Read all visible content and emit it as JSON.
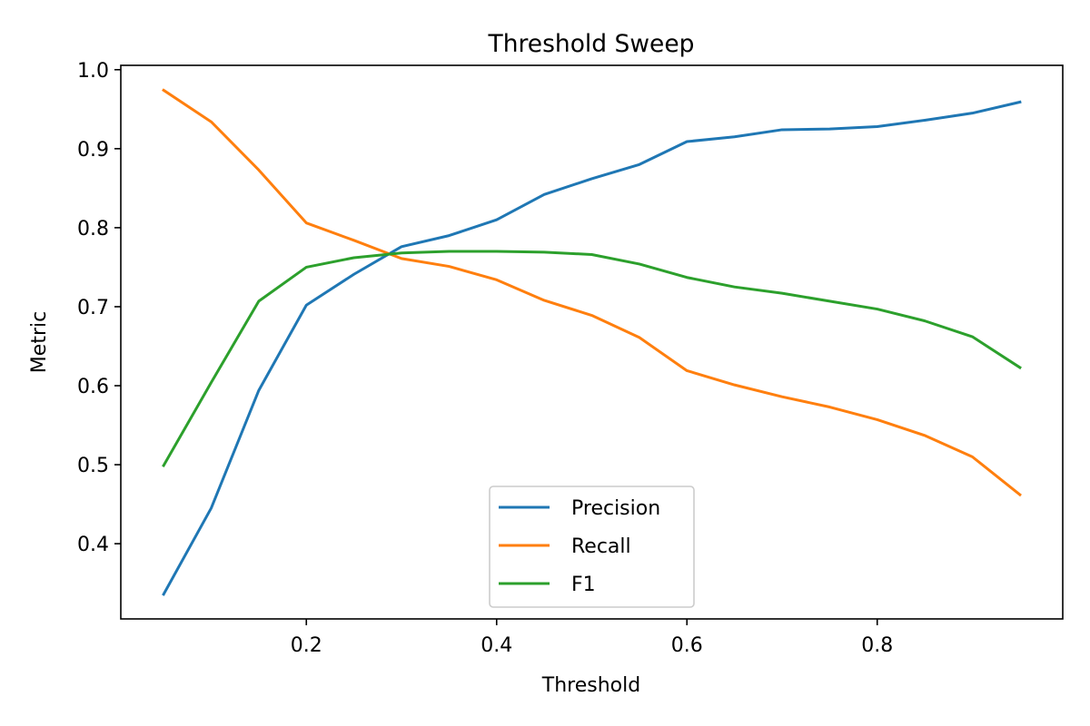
{
  "chart_data": {
    "type": "line",
    "title": "Threshold Sweep",
    "xlabel": "Threshold",
    "ylabel": "Metric",
    "x": [
      0.05,
      0.1,
      0.15,
      0.2,
      0.25,
      0.3,
      0.35,
      0.4,
      0.45,
      0.5,
      0.55,
      0.6,
      0.65,
      0.7,
      0.75,
      0.8,
      0.85,
      0.9,
      0.95
    ],
    "xlim": [
      0.0,
      1.0
    ],
    "ylim": [
      0.3,
      1.0
    ],
    "x_ticks": [
      0.2,
      0.4,
      0.6,
      0.8
    ],
    "x_tick_labels": [
      "0.2",
      "0.4",
      "0.6",
      "0.8"
    ],
    "y_ticks": [
      0.4,
      0.5,
      0.6,
      0.7,
      0.8,
      0.9,
      1.0
    ],
    "y_tick_labels": [
      "0.4",
      "0.5",
      "0.6",
      "0.7",
      "0.8",
      "0.9",
      "1.0"
    ],
    "grid": false,
    "legend_position": "lower center",
    "series": [
      {
        "name": "Precision",
        "color": "#1f77b4",
        "values": [
          0.336,
          0.445,
          0.594,
          0.702,
          0.741,
          0.776,
          0.79,
          0.81,
          0.842,
          0.862,
          0.88,
          0.909,
          0.915,
          0.924,
          0.925,
          0.928,
          0.936,
          0.945,
          0.959
        ]
      },
      {
        "name": "Recall",
        "color": "#ff7f0e",
        "values": [
          0.974,
          0.934,
          0.873,
          0.806,
          0.784,
          0.761,
          0.751,
          0.734,
          0.708,
          0.689,
          0.661,
          0.619,
          0.601,
          0.586,
          0.573,
          0.557,
          0.537,
          0.51,
          0.462
        ]
      },
      {
        "name": "F1",
        "color": "#2ca02c",
        "values": [
          0.499,
          0.604,
          0.707,
          0.75,
          0.762,
          0.768,
          0.77,
          0.77,
          0.769,
          0.766,
          0.754,
          0.737,
          0.725,
          0.717,
          0.707,
          0.697,
          0.682,
          0.662,
          0.623
        ]
      }
    ]
  }
}
